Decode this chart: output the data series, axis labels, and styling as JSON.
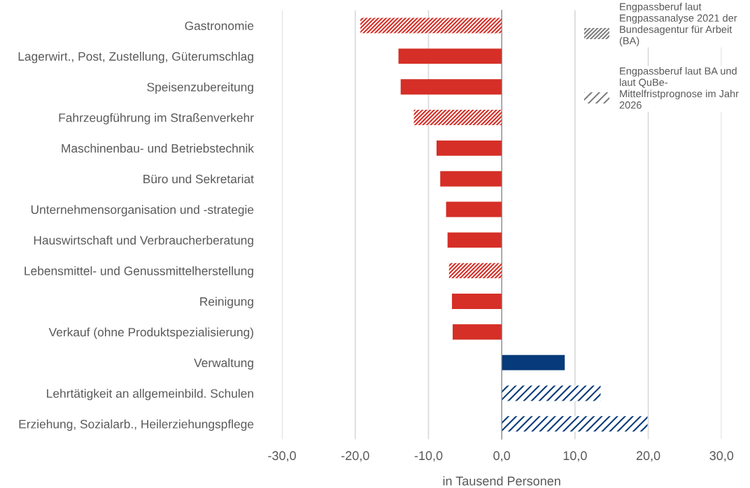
{
  "chart_data": {
    "type": "bar",
    "orientation": "horizontal",
    "categories": [
      "Gastronomie",
      "Lagerwirt., Post, Zustellung, Güterumschlag",
      "Speisenzubereitung",
      "Fahrzeugführung im Straßenverkehr",
      "Maschinenbau- und Betriebstechnik",
      "Büro und Sekretariat",
      "Unternehmensorganisation und -strategie",
      "Hauswirtschaft und Verbraucherberatung",
      "Lebensmittel- und Genussmittelherstellung",
      "Reinigung",
      "Verkauf (ohne Produktspezialisierung)",
      "Verwaltung",
      "Lehrtätigkeit an allgemeinbild. Schulen",
      "Erziehung, Sozialarb., Heilerziehungspflege"
    ],
    "series": [
      {
        "line_style": "solid",
        "values": [
          null,
          -14.1,
          -13.8,
          null,
          -8.9,
          -8.4,
          -7.6,
          -7.4,
          null,
          -6.8,
          -6.7,
          8.6,
          null,
          null
        ],
        "colors": [
          "#d52f27",
          "#d52f27",
          "#d52f27",
          "#d52f27",
          "#d52f27",
          "#d52f27",
          "#d52f27",
          "#d52f27",
          "#d52f27",
          "#d52f27",
          "#d52f27",
          "#063a7a",
          "#063a7a",
          "#063a7a"
        ]
      },
      {
        "line_style": "dotted",
        "values": [
          -19.3,
          null,
          null,
          -12.0,
          null,
          null,
          null,
          null,
          -7.2,
          null,
          null,
          null,
          null,
          null
        ],
        "colors": [
          "#d52f27",
          "#d52f27",
          "#d52f27",
          "#d52f27",
          "#d52f27",
          "#d52f27",
          "#d52f27",
          "#d52f27",
          "#d52f27",
          "#d52f27",
          "#d52f27",
          "#063a7a",
          "#063a7a",
          "#063a7a"
        ]
      },
      {
        "line_style": "dashed",
        "values": [
          null,
          null,
          null,
          null,
          null,
          null,
          null,
          null,
          null,
          null,
          null,
          null,
          13.5,
          19.9
        ],
        "colors": [
          "#d52f27",
          "#d52f27",
          "#d52f27",
          "#d52f27",
          "#d52f27",
          "#d52f27",
          "#d52f27",
          "#d52f27",
          "#d52f27",
          "#d52f27",
          "#d52f27",
          "#063a7a",
          "#063a7a",
          "#063a7a"
        ]
      }
    ],
    "annotations": [
      "Engpassberuf laut Engpassanalyse 2021 der Bundesagentur für Arbeit (BA)",
      "Engpassberuf laut BA und laut QuBe-Mittelfristprognose im Jahr 2026"
    ],
    "xlabel": "in Tausend Personen",
    "xlim": [
      -30,
      30
    ],
    "xticks": [
      {
        "value": -30,
        "label": "-30,0"
      },
      {
        "value": -20,
        "label": "-20,0"
      },
      {
        "value": -10,
        "label": "-10,0"
      },
      {
        "value": 0,
        "label": "0,0"
      },
      {
        "value": 10,
        "label": "10,0"
      },
      {
        "value": 20,
        "label": "20,0"
      },
      {
        "value": 30,
        "label": "30,0"
      }
    ],
    "grid": "x"
  }
}
